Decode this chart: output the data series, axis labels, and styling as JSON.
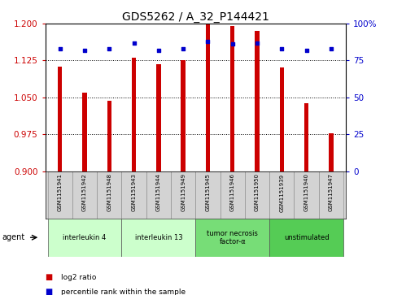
{
  "title": "GDS5262 / A_32_P144421",
  "samples": [
    "GSM1151941",
    "GSM1151942",
    "GSM1151948",
    "GSM1151943",
    "GSM1151944",
    "GSM1151949",
    "GSM1151945",
    "GSM1151946",
    "GSM1151950",
    "GSM1151939",
    "GSM1151940",
    "GSM1151947"
  ],
  "log2_values": [
    1.113,
    1.06,
    1.043,
    1.13,
    1.118,
    1.125,
    1.2,
    1.195,
    1.185,
    1.11,
    1.038,
    0.977
  ],
  "percentile_values": [
    83,
    82,
    83,
    87,
    82,
    83,
    88,
    86,
    87,
    83,
    82,
    83
  ],
  "ylim_left": [
    0.9,
    1.2
  ],
  "ylim_right": [
    0,
    100
  ],
  "yticks_left": [
    0.9,
    0.975,
    1.05,
    1.125,
    1.2
  ],
  "yticks_right": [
    0,
    25,
    50,
    75,
    100
  ],
  "groups": [
    {
      "label": "interleukin 4",
      "start": 0,
      "end": 3,
      "color": "#ccffcc"
    },
    {
      "label": "interleukin 13",
      "start": 3,
      "end": 6,
      "color": "#ccffcc"
    },
    {
      "label": "tumor necrosis\nfactor-α",
      "start": 6,
      "end": 9,
      "color": "#77dd77"
    },
    {
      "label": "unstimulated",
      "start": 9,
      "end": 12,
      "color": "#55cc55"
    }
  ],
  "bar_color": "#cc0000",
  "dot_color": "#0000cc",
  "bar_width": 0.18,
  "background_color": "#ffffff",
  "tick_label_color_left": "#cc0000",
  "tick_label_color_right": "#0000cc",
  "legend_items": [
    {
      "label": "log2 ratio",
      "color": "#cc0000"
    },
    {
      "label": "percentile rank within the sample",
      "color": "#0000cc"
    }
  ],
  "title_fontsize": 10,
  "tick_fontsize": 7.5
}
